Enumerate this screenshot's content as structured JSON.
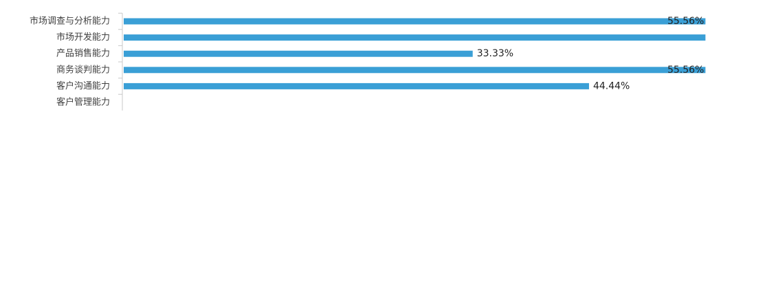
{
  "chart_data": {
    "type": "barh",
    "categories": [
      "市场调查与分析能力",
      "市场开发能力",
      "产品销售能力",
      "商务谈判能力",
      "客户沟通能力",
      "客户管理能力"
    ],
    "values": [
      55.56,
      55.56,
      33.33,
      55.56,
      44.44,
      null
    ],
    "value_labels": [
      "55.56%",
      null,
      "33.33%",
      "55.56%",
      "44.44%",
      null
    ],
    "color": "#3a9fd6",
    "xlim": [
      0,
      60
    ]
  }
}
